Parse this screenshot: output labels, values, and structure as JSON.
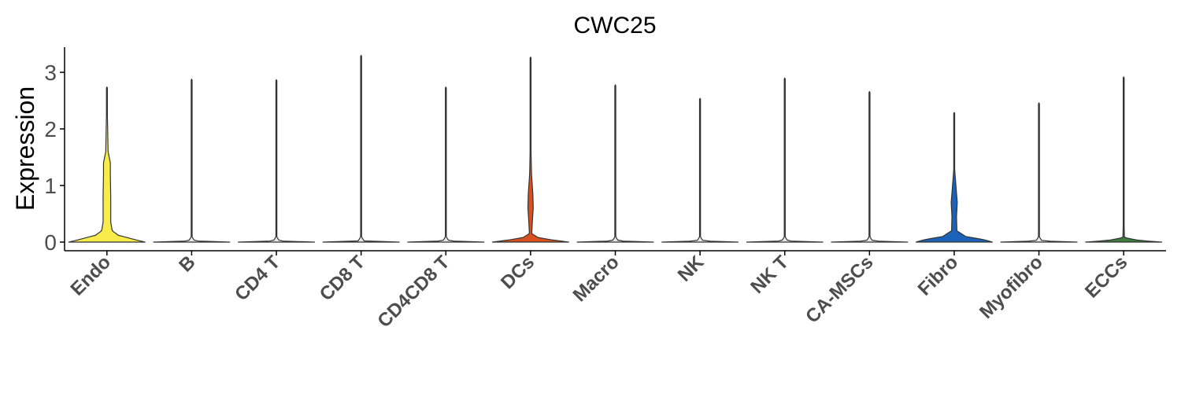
{
  "chart_data": {
    "type": "violin",
    "title": "CWC25",
    "xlabel": "",
    "ylabel": "Expression",
    "ylim": [
      -0.15,
      3.45
    ],
    "yticks": [
      0,
      1,
      2,
      3
    ],
    "grid": false,
    "legend": "none",
    "categories": [
      "Endo",
      "B",
      "CD4 T",
      "CD8 T",
      "CD4CD8 T",
      "DCs",
      "Macro",
      "NK",
      "NK T",
      "CA-MSCs",
      "Fibro",
      "Myofibro",
      "ECCs"
    ],
    "colors": [
      "#F7EC4A",
      "#E8E8E8",
      "#E8E8E8",
      "#E8E8E8",
      "#E8E8E8",
      "#D9501E",
      "#E8E8E8",
      "#E8E8E8",
      "#E8E8E8",
      "#E8E8E8",
      "#1B63B8",
      "#E8E8E8",
      "#3E7D3C"
    ],
    "max_values": [
      2.74,
      2.88,
      2.87,
      3.3,
      2.74,
      3.27,
      2.78,
      2.54,
      2.9,
      2.66,
      2.29,
      2.46,
      2.92
    ],
    "density_profiles": [
      [
        [
          0,
          1.0
        ],
        [
          0.05,
          0.7
        ],
        [
          0.12,
          0.3
        ],
        [
          0.2,
          0.14
        ],
        [
          0.35,
          0.1
        ],
        [
          0.5,
          0.1
        ],
        [
          0.8,
          0.1
        ],
        [
          1.2,
          0.09
        ],
        [
          1.4,
          0.09
        ],
        [
          1.6,
          0.03
        ],
        [
          2.0,
          0.02
        ],
        [
          2.4,
          0.006
        ],
        [
          2.74,
          0.0
        ]
      ],
      [
        [
          0,
          1.0
        ],
        [
          0.02,
          0.08
        ],
        [
          0.1,
          0.004
        ],
        [
          2.88,
          0.0
        ]
      ],
      [
        [
          0,
          1.0
        ],
        [
          0.02,
          0.08
        ],
        [
          0.1,
          0.004
        ],
        [
          2.87,
          0.0
        ]
      ],
      [
        [
          0,
          1.0
        ],
        [
          0.02,
          0.08
        ],
        [
          0.1,
          0.004
        ],
        [
          3.3,
          0.0
        ]
      ],
      [
        [
          0,
          1.0
        ],
        [
          0.02,
          0.08
        ],
        [
          0.1,
          0.004
        ],
        [
          2.74,
          0.0
        ]
      ],
      [
        [
          0,
          1.0
        ],
        [
          0.04,
          0.55
        ],
        [
          0.08,
          0.2
        ],
        [
          0.15,
          0.03
        ],
        [
          0.4,
          0.05
        ],
        [
          0.6,
          0.07
        ],
        [
          0.85,
          0.06
        ],
        [
          1.2,
          0.025
        ],
        [
          1.5,
          0.015
        ],
        [
          2.0,
          0.004
        ],
        [
          3.27,
          0.0
        ]
      ],
      [
        [
          0,
          1.0
        ],
        [
          0.02,
          0.08
        ],
        [
          0.1,
          0.004
        ],
        [
          2.78,
          0.0
        ]
      ],
      [
        [
          0,
          1.0
        ],
        [
          0.02,
          0.08
        ],
        [
          0.1,
          0.004
        ],
        [
          2.54,
          0.0
        ]
      ],
      [
        [
          0,
          1.0
        ],
        [
          0.02,
          0.08
        ],
        [
          0.1,
          0.004
        ],
        [
          2.9,
          0.0
        ]
      ],
      [
        [
          0,
          1.0
        ],
        [
          0.02,
          0.08
        ],
        [
          0.1,
          0.004
        ],
        [
          2.66,
          0.0
        ]
      ],
      [
        [
          0,
          1.0
        ],
        [
          0.04,
          0.8
        ],
        [
          0.1,
          0.3
        ],
        [
          0.2,
          0.07
        ],
        [
          0.45,
          0.06
        ],
        [
          0.7,
          0.08
        ],
        [
          0.95,
          0.05
        ],
        [
          1.3,
          0.01
        ],
        [
          1.8,
          0.004
        ],
        [
          2.29,
          0.0
        ]
      ],
      [
        [
          0,
          1.0
        ],
        [
          0.02,
          0.08
        ],
        [
          0.1,
          0.004
        ],
        [
          2.46,
          0.0
        ]
      ],
      [
        [
          0,
          1.0
        ],
        [
          0.03,
          0.4
        ],
        [
          0.08,
          0.02
        ],
        [
          0.4,
          0.008
        ],
        [
          1.0,
          0.003
        ],
        [
          2.92,
          0.0
        ]
      ]
    ]
  }
}
